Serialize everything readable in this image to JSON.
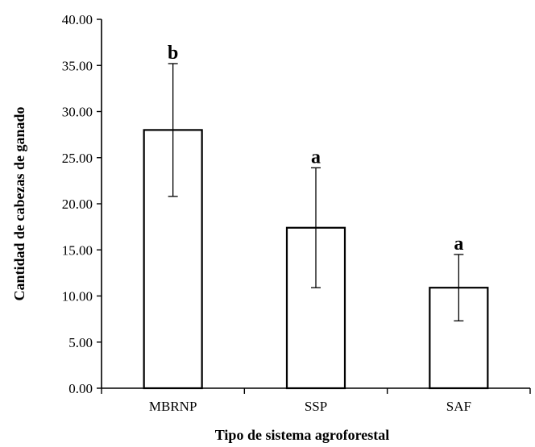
{
  "chart_data": {
    "type": "bar",
    "categories": [
      "MBRNP",
      "SSP",
      "SAF"
    ],
    "values": [
      28.0,
      17.4,
      10.9
    ],
    "error": [
      7.2,
      6.5,
      3.6
    ],
    "significance_letters": [
      "b",
      "a",
      "a"
    ],
    "ylim": [
      0,
      40
    ],
    "yticks": [
      "0.00",
      "5.00",
      "10.00",
      "15.00",
      "20.00",
      "25.00",
      "30.00",
      "35.00",
      "40.00"
    ],
    "xlabel": "Tipo  de  sistema agroforestal",
    "ylabel": "Cantidad de cabezas de ganado",
    "grid": false,
    "legend": "none",
    "bar_fill": "#ffffff",
    "bar_stroke": "#000000"
  }
}
